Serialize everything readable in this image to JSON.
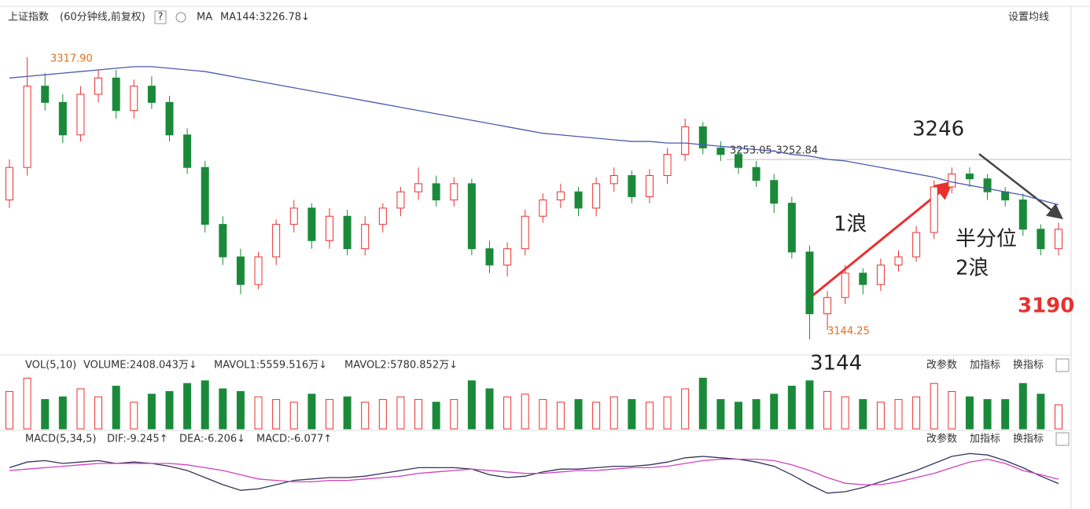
{
  "header": {
    "name": "上证指数",
    "period": "(60分钟线,前复权)",
    "help": "?",
    "ma_label": "MA",
    "ma_value": "MA144:3226.78↓",
    "settings": "设置均线"
  },
  "volume_header": {
    "name": "VOL(5,10)",
    "volume": "VOLUME:2408.043万↓",
    "mavol1": "MAVOL1:5559.516万↓",
    "mavol2": "MAVOL2:5780.852万↓"
  },
  "macd_header": {
    "name": "MACD(5,34,5)",
    "dif": "DIF:-9.245↑",
    "dea": "DEA:-6.206↓",
    "macd": "MACD:-6.077↑"
  },
  "buttons": [
    "改参数",
    "加指标",
    "换指标"
  ],
  "annotations": {
    "high": "3317.90",
    "low": "3144.25",
    "level": "3253.05-3252.84",
    "peak": "3246",
    "wave1": "1浪",
    "half": "半分位",
    "wave2": "2浪",
    "target": "3190",
    "bottom": "3144"
  },
  "chart_data": {
    "type": "candlestick",
    "up_color": "#e8312f",
    "down_color": "#1a8a3a",
    "ma_color": "#4a5bb0",
    "ylim": [
      3138,
      3324
    ],
    "ohlc": [
      [
        3230,
        3255,
        3225,
        3250
      ],
      [
        3250,
        3317.9,
        3245,
        3300
      ],
      [
        3300,
        3308,
        3285,
        3290
      ],
      [
        3290,
        3295,
        3265,
        3270
      ],
      [
        3270,
        3300,
        3266,
        3295
      ],
      [
        3295,
        3310,
        3290,
        3305
      ],
      [
        3305,
        3310,
        3280,
        3285
      ],
      [
        3285,
        3304,
        3280,
        3300
      ],
      [
        3300,
        3306,
        3286,
        3290
      ],
      [
        3290,
        3294,
        3266,
        3270
      ],
      [
        3270,
        3274,
        3246,
        3250
      ],
      [
        3250,
        3254,
        3210,
        3215
      ],
      [
        3215,
        3220,
        3190,
        3195
      ],
      [
        3195,
        3200,
        3172,
        3178
      ],
      [
        3178,
        3198,
        3175,
        3195
      ],
      [
        3195,
        3218,
        3190,
        3215
      ],
      [
        3215,
        3230,
        3210,
        3225
      ],
      [
        3225,
        3228,
        3200,
        3205
      ],
      [
        3205,
        3225,
        3200,
        3220
      ],
      [
        3220,
        3224,
        3196,
        3200
      ],
      [
        3200,
        3220,
        3196,
        3215
      ],
      [
        3215,
        3228,
        3210,
        3225
      ],
      [
        3225,
        3238,
        3220,
        3235
      ],
      [
        3235,
        3250,
        3230,
        3240
      ],
      [
        3240,
        3245,
        3226,
        3230
      ],
      [
        3230,
        3244,
        3226,
        3240
      ],
      [
        3240,
        3243,
        3196,
        3200
      ],
      [
        3200,
        3205,
        3185,
        3190
      ],
      [
        3190,
        3204,
        3183,
        3200
      ],
      [
        3200,
        3224,
        3196,
        3220
      ],
      [
        3220,
        3234,
        3216,
        3230
      ],
      [
        3230,
        3240,
        3225,
        3235
      ],
      [
        3235,
        3238,
        3220,
        3225
      ],
      [
        3225,
        3244,
        3220,
        3240
      ],
      [
        3240,
        3250,
        3235,
        3245
      ],
      [
        3245,
        3248,
        3228,
        3232
      ],
      [
        3232,
        3249,
        3228,
        3245
      ],
      [
        3245,
        3262,
        3240,
        3258
      ],
      [
        3258,
        3280,
        3254,
        3275
      ],
      [
        3275,
        3278,
        3258,
        3262
      ],
      [
        3262,
        3266,
        3254,
        3258
      ],
      [
        3258,
        3261,
        3246,
        3250
      ],
      [
        3250,
        3254,
        3238,
        3242
      ],
      [
        3242,
        3246,
        3222,
        3228
      ],
      [
        3228,
        3232,
        3194,
        3198
      ],
      [
        3198,
        3202,
        3144.25,
        3160
      ],
      [
        3160,
        3174,
        3150,
        3170
      ],
      [
        3170,
        3190,
        3166,
        3185
      ],
      [
        3185,
        3188,
        3172,
        3178
      ],
      [
        3178,
        3194,
        3174,
        3190
      ],
      [
        3190,
        3199,
        3186,
        3195
      ],
      [
        3195,
        3214,
        3192,
        3210
      ],
      [
        3210,
        3242,
        3206,
        3238
      ],
      [
        3238,
        3250,
        3234,
        3246
      ],
      [
        3246,
        3250,
        3238,
        3243
      ],
      [
        3243,
        3246,
        3230,
        3235
      ],
      [
        3235,
        3238,
        3226,
        3230
      ],
      [
        3230,
        3234,
        3208,
        3212
      ],
      [
        3212,
        3215,
        3196,
        3200
      ],
      [
        3200,
        3216,
        3196,
        3212
      ]
    ],
    "ma": [
      3305,
      3306,
      3307,
      3308,
      3309,
      3310,
      3311,
      3312,
      3312,
      3311,
      3310,
      3309,
      3307,
      3305,
      3303,
      3301,
      3299,
      3297,
      3295,
      3293,
      3291,
      3289,
      3287,
      3285,
      3283,
      3281,
      3279,
      3277,
      3275,
      3273,
      3271,
      3270,
      3269,
      3268,
      3267,
      3266,
      3266,
      3265,
      3265,
      3264,
      3263,
      3262,
      3261,
      3260,
      3258,
      3257,
      3255,
      3254,
      3252,
      3250,
      3248,
      3246,
      3244,
      3241,
      3239,
      3237,
      3235,
      3233,
      3230,
      3227
    ],
    "volume": {
      "ylim": [
        0,
        100
      ],
      "values": [
        70,
        95,
        55,
        60,
        75,
        60,
        80,
        50,
        65,
        70,
        85,
        90,
        75,
        70,
        60,
        55,
        50,
        65,
        55,
        60,
        50,
        55,
        60,
        55,
        50,
        55,
        90,
        75,
        60,
        65,
        55,
        50,
        55,
        50,
        60,
        55,
        50,
        60,
        75,
        95,
        55,
        50,
        55,
        65,
        80,
        90,
        70,
        60,
        55,
        50,
        55,
        60,
        85,
        70,
        60,
        55,
        55,
        85,
        65,
        45
      ]
    },
    "macd": {
      "ylim": [
        -25,
        15
      ],
      "dif_color": "#33335a",
      "dea_color": "#d040c0",
      "dif": [
        2,
        6,
        7,
        5,
        6,
        7,
        5,
        6,
        5,
        3,
        0,
        -5,
        -10,
        -14,
        -13,
        -10,
        -7,
        -6,
        -5,
        -5,
        -4,
        -2,
        0,
        2,
        2,
        2,
        1,
        -3,
        -5,
        -4,
        -1,
        1,
        1,
        2,
        3,
        3,
        4,
        6,
        9,
        10,
        9,
        8,
        6,
        3,
        -3,
        -10,
        -16,
        -15,
        -12,
        -8,
        -4,
        0,
        5,
        10,
        12,
        11,
        7,
        2,
        -4,
        -9.245
      ],
      "dea": [
        0,
        1,
        2,
        3,
        4,
        5,
        5,
        5,
        5,
        5,
        4,
        2,
        0,
        -3,
        -6,
        -7,
        -8,
        -8,
        -7,
        -7,
        -6,
        -5,
        -4,
        -2,
        -1,
        0,
        1,
        0,
        -1,
        -2,
        -2,
        -1,
        0,
        0,
        1,
        2,
        2,
        3,
        5,
        7,
        8,
        8,
        8,
        7,
        4,
        0,
        -5,
        -9,
        -10,
        -10,
        -8,
        -5,
        -2,
        2,
        6,
        8,
        5,
        0,
        -3,
        -6.206
      ]
    }
  }
}
